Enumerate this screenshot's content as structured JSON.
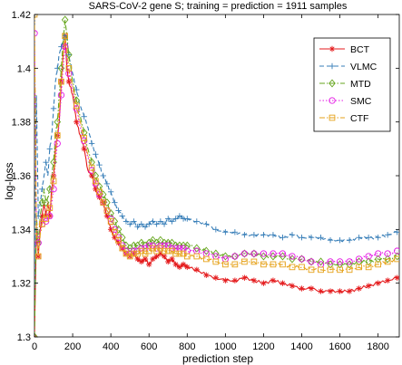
{
  "chart_data": {
    "type": "line",
    "title": "SARS-CoV-2 gene S; training = prediction = 1911 samples",
    "xlabel": "prediction step",
    "ylabel": "log-loss",
    "xlim": [
      0,
      1911
    ],
    "ylim": [
      1.3,
      1.42
    ],
    "xticks": [
      0,
      200,
      400,
      600,
      800,
      1000,
      1200,
      1400,
      1600,
      1800
    ],
    "yticks": [
      1.3,
      1.32,
      1.34,
      1.36,
      1.38,
      1.4,
      1.42
    ],
    "xtick_labels": [
      "0",
      "200",
      "400",
      "600",
      "800",
      "1000",
      "1200",
      "1400",
      "1600",
      "1800"
    ],
    "ytick_labels": [
      "1.3",
      "1.32",
      "1.34",
      "1.36",
      "1.38",
      "1.4",
      "1.42"
    ],
    "grid": false,
    "legend_position": "top-right",
    "series": [
      {
        "name": "BCT",
        "color": "#e41a1c",
        "dash": "solid",
        "marker": "asterisk",
        "x": [
          0,
          10,
          20,
          30,
          40,
          50,
          60,
          70,
          80,
          90,
          100,
          110,
          120,
          130,
          140,
          150,
          160,
          170,
          180,
          200,
          220,
          240,
          260,
          280,
          300,
          320,
          340,
          360,
          380,
          400,
          420,
          440,
          460,
          480,
          500,
          520,
          540,
          560,
          580,
          600,
          620,
          640,
          660,
          680,
          700,
          720,
          740,
          760,
          780,
          800,
          850,
          900,
          950,
          1000,
          1050,
          1100,
          1150,
          1200,
          1250,
          1300,
          1350,
          1400,
          1450,
          1500,
          1550,
          1600,
          1650,
          1700,
          1750,
          1800,
          1850,
          1900
        ],
        "y": [
          1.3,
          1.34,
          1.33,
          1.34,
          1.345,
          1.35,
          1.345,
          1.35,
          1.345,
          1.355,
          1.36,
          1.37,
          1.375,
          1.38,
          1.395,
          1.405,
          1.412,
          1.4,
          1.395,
          1.39,
          1.38,
          1.375,
          1.37,
          1.362,
          1.36,
          1.355,
          1.352,
          1.35,
          1.345,
          1.34,
          1.337,
          1.335,
          1.333,
          1.331,
          1.33,
          1.331,
          1.329,
          1.328,
          1.329,
          1.327,
          1.329,
          1.33,
          1.331,
          1.33,
          1.328,
          1.329,
          1.327,
          1.326,
          1.327,
          1.326,
          1.325,
          1.323,
          1.322,
          1.321,
          1.321,
          1.322,
          1.321,
          1.32,
          1.321,
          1.32,
          1.319,
          1.318,
          1.318,
          1.317,
          1.317,
          1.317,
          1.317,
          1.318,
          1.319,
          1.32,
          1.321,
          1.322
        ]
      },
      {
        "name": "VLMC",
        "color": "#377eb8",
        "dash": "dashed",
        "marker": "plus",
        "x": [
          0,
          10,
          20,
          30,
          40,
          50,
          60,
          70,
          80,
          90,
          100,
          110,
          120,
          130,
          140,
          150,
          160,
          170,
          180,
          200,
          220,
          240,
          260,
          280,
          300,
          320,
          340,
          360,
          380,
          400,
          420,
          440,
          460,
          480,
          500,
          520,
          540,
          560,
          580,
          600,
          620,
          640,
          660,
          680,
          700,
          720,
          740,
          760,
          780,
          800,
          850,
          900,
          950,
          1000,
          1050,
          1100,
          1150,
          1200,
          1250,
          1300,
          1350,
          1400,
          1450,
          1500,
          1550,
          1600,
          1650,
          1700,
          1750,
          1800,
          1850,
          1900
        ],
        "y": [
          1.32,
          1.39,
          1.345,
          1.35,
          1.355,
          1.36,
          1.365,
          1.36,
          1.37,
          1.375,
          1.385,
          1.395,
          1.4,
          1.405,
          1.408,
          1.41,
          1.412,
          1.41,
          1.405,
          1.398,
          1.392,
          1.386,
          1.382,
          1.378,
          1.372,
          1.368,
          1.364,
          1.36,
          1.357,
          1.354,
          1.35,
          1.347,
          1.345,
          1.343,
          1.342,
          1.343,
          1.341,
          1.342,
          1.341,
          1.342,
          1.343,
          1.342,
          1.343,
          1.342,
          1.344,
          1.343,
          1.344,
          1.345,
          1.344,
          1.344,
          1.343,
          1.342,
          1.34,
          1.339,
          1.339,
          1.338,
          1.338,
          1.338,
          1.338,
          1.337,
          1.338,
          1.337,
          1.337,
          1.337,
          1.336,
          1.336,
          1.336,
          1.337,
          1.337,
          1.337,
          1.338,
          1.339
        ]
      },
      {
        "name": "MTD",
        "color": "#66a61e",
        "dash": "dashdot",
        "marker": "diamond",
        "x": [
          0,
          10,
          20,
          30,
          40,
          50,
          60,
          70,
          80,
          90,
          100,
          110,
          120,
          130,
          140,
          150,
          160,
          170,
          180,
          200,
          220,
          240,
          260,
          280,
          300,
          320,
          340,
          360,
          380,
          400,
          420,
          440,
          460,
          480,
          500,
          520,
          540,
          560,
          580,
          600,
          620,
          640,
          660,
          680,
          700,
          720,
          740,
          760,
          780,
          800,
          850,
          900,
          950,
          1000,
          1050,
          1100,
          1150,
          1200,
          1250,
          1300,
          1350,
          1400,
          1450,
          1500,
          1550,
          1600,
          1650,
          1700,
          1750,
          1800,
          1850,
          1900
        ],
        "y": [
          1.3,
          1.345,
          1.335,
          1.345,
          1.35,
          1.355,
          1.35,
          1.352,
          1.355,
          1.36,
          1.365,
          1.375,
          1.38,
          1.39,
          1.4,
          1.41,
          1.418,
          1.412,
          1.405,
          1.395,
          1.388,
          1.382,
          1.376,
          1.37,
          1.365,
          1.36,
          1.356,
          1.353,
          1.35,
          1.346,
          1.343,
          1.34,
          1.337,
          1.334,
          1.333,
          1.334,
          1.334,
          1.335,
          1.334,
          1.335,
          1.336,
          1.335,
          1.336,
          1.335,
          1.335,
          1.335,
          1.334,
          1.334,
          1.334,
          1.334,
          1.333,
          1.332,
          1.331,
          1.33,
          1.33,
          1.331,
          1.331,
          1.33,
          1.33,
          1.33,
          1.329,
          1.329,
          1.328,
          1.328,
          1.327,
          1.327,
          1.327,
          1.328,
          1.328,
          1.329,
          1.329,
          1.33
        ]
      },
      {
        "name": "SMC",
        "color": "#e41ae4",
        "dash": "dotted",
        "marker": "circle",
        "x": [
          0,
          10,
          20,
          30,
          40,
          50,
          60,
          70,
          80,
          90,
          100,
          110,
          120,
          130,
          140,
          150,
          160,
          170,
          180,
          200,
          220,
          240,
          260,
          280,
          300,
          320,
          340,
          360,
          380,
          400,
          420,
          440,
          460,
          480,
          500,
          520,
          540,
          560,
          580,
          600,
          620,
          640,
          660,
          680,
          700,
          720,
          740,
          760,
          780,
          800,
          850,
          900,
          950,
          1000,
          1050,
          1100,
          1150,
          1200,
          1250,
          1300,
          1350,
          1400,
          1450,
          1500,
          1550,
          1600,
          1650,
          1700,
          1750,
          1800,
          1850,
          1900
        ],
        "y": [
          1.413,
          1.342,
          1.335,
          1.34,
          1.342,
          1.344,
          1.343,
          1.344,
          1.345,
          1.35,
          1.355,
          1.365,
          1.372,
          1.38,
          1.39,
          1.4,
          1.408,
          1.403,
          1.398,
          1.392,
          1.385,
          1.378,
          1.373,
          1.367,
          1.362,
          1.357,
          1.353,
          1.35,
          1.347,
          1.344,
          1.34,
          1.337,
          1.334,
          1.332,
          1.331,
          1.332,
          1.332,
          1.333,
          1.333,
          1.334,
          1.334,
          1.333,
          1.334,
          1.334,
          1.334,
          1.333,
          1.333,
          1.333,
          1.333,
          1.332,
          1.332,
          1.331,
          1.33,
          1.329,
          1.33,
          1.331,
          1.331,
          1.331,
          1.331,
          1.331,
          1.33,
          1.329,
          1.328,
          1.327,
          1.328,
          1.328,
          1.328,
          1.329,
          1.33,
          1.331,
          1.331,
          1.332
        ]
      },
      {
        "name": "CTF",
        "color": "#e6a21a",
        "dash": "dashdot",
        "marker": "square",
        "x": [
          0,
          10,
          20,
          30,
          40,
          50,
          60,
          70,
          80,
          90,
          100,
          110,
          120,
          130,
          140,
          150,
          160,
          170,
          180,
          200,
          220,
          240,
          260,
          280,
          300,
          320,
          340,
          360,
          380,
          400,
          420,
          440,
          460,
          480,
          500,
          520,
          540,
          560,
          580,
          600,
          620,
          640,
          660,
          680,
          700,
          720,
          740,
          760,
          780,
          800,
          850,
          900,
          950,
          1000,
          1050,
          1100,
          1150,
          1200,
          1250,
          1300,
          1350,
          1400,
          1450,
          1500,
          1550,
          1600,
          1650,
          1700,
          1750,
          1800,
          1850,
          1900
        ],
        "y": [
          1.42,
          1.34,
          1.33,
          1.338,
          1.342,
          1.346,
          1.344,
          1.346,
          1.348,
          1.352,
          1.358,
          1.368,
          1.375,
          1.385,
          1.395,
          1.405,
          1.412,
          1.407,
          1.4,
          1.393,
          1.386,
          1.38,
          1.374,
          1.368,
          1.363,
          1.358,
          1.354,
          1.35,
          1.347,
          1.343,
          1.339,
          1.336,
          1.333,
          1.331,
          1.33,
          1.331,
          1.331,
          1.332,
          1.331,
          1.332,
          1.333,
          1.332,
          1.333,
          1.332,
          1.332,
          1.332,
          1.331,
          1.331,
          1.331,
          1.33,
          1.33,
          1.329,
          1.328,
          1.327,
          1.327,
          1.328,
          1.328,
          1.327,
          1.327,
          1.327,
          1.326,
          1.326,
          1.325,
          1.325,
          1.325,
          1.325,
          1.325,
          1.326,
          1.326,
          1.327,
          1.328,
          1.329
        ]
      }
    ]
  }
}
